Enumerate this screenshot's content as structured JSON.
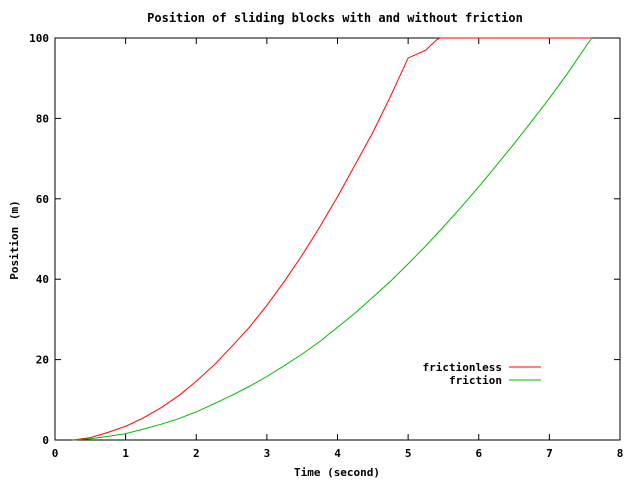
{
  "chart_data": {
    "type": "line",
    "title": "Position of sliding blocks with and without friction",
    "xlabel": "Time (second)",
    "ylabel": "Position (m)",
    "xlim": [
      0,
      8
    ],
    "ylim": [
      0,
      100
    ],
    "xticks": [
      "0",
      "1",
      "2",
      "3",
      "4",
      "5",
      "6",
      "7",
      "8"
    ],
    "yticks": [
      "0",
      "20",
      "40",
      "60",
      "80",
      "100"
    ],
    "grid": false,
    "legend_position": "bottom-right",
    "series": [
      {
        "name": "frictionless",
        "color": "#ff0000",
        "x": [
          0.25,
          0.5,
          0.75,
          1.0,
          1.25,
          1.5,
          1.75,
          2.0,
          2.25,
          2.5,
          2.75,
          3.0,
          3.25,
          3.5,
          3.75,
          4.0,
          4.25,
          4.5,
          4.75,
          5.0,
          5.25,
          5.4,
          5.45,
          6.0,
          6.5,
          7.0,
          7.6
        ],
        "y": [
          0,
          0.6,
          1.9,
          3.4,
          5.5,
          8.0,
          11.0,
          14.6,
          18.6,
          23.2,
          28.0,
          33.5,
          39.5,
          46.0,
          53.0,
          60.5,
          68.5,
          76.5,
          85.5,
          95.0,
          97.0,
          99.5,
          100,
          100,
          100,
          100,
          100
        ]
      },
      {
        "name": "friction",
        "color": "#00bb00",
        "x": [
          0.25,
          0.5,
          0.75,
          1.0,
          1.25,
          1.5,
          1.75,
          2.0,
          2.25,
          2.5,
          2.75,
          3.0,
          3.25,
          3.5,
          3.75,
          4.0,
          4.25,
          4.5,
          4.75,
          5.0,
          5.25,
          5.5,
          5.75,
          6.0,
          6.25,
          6.5,
          6.75,
          7.0,
          7.25,
          7.5,
          7.6
        ],
        "y": [
          0,
          0.3,
          0.9,
          1.6,
          2.7,
          3.9,
          5.3,
          7.0,
          9.0,
          11.1,
          13.3,
          15.8,
          18.5,
          21.4,
          24.5,
          28.0,
          31.6,
          35.5,
          39.5,
          43.8,
          48.3,
          53.0,
          57.9,
          63.0,
          68.3,
          73.7,
          79.3,
          85.0,
          91.0,
          97.5,
          100
        ]
      }
    ]
  }
}
